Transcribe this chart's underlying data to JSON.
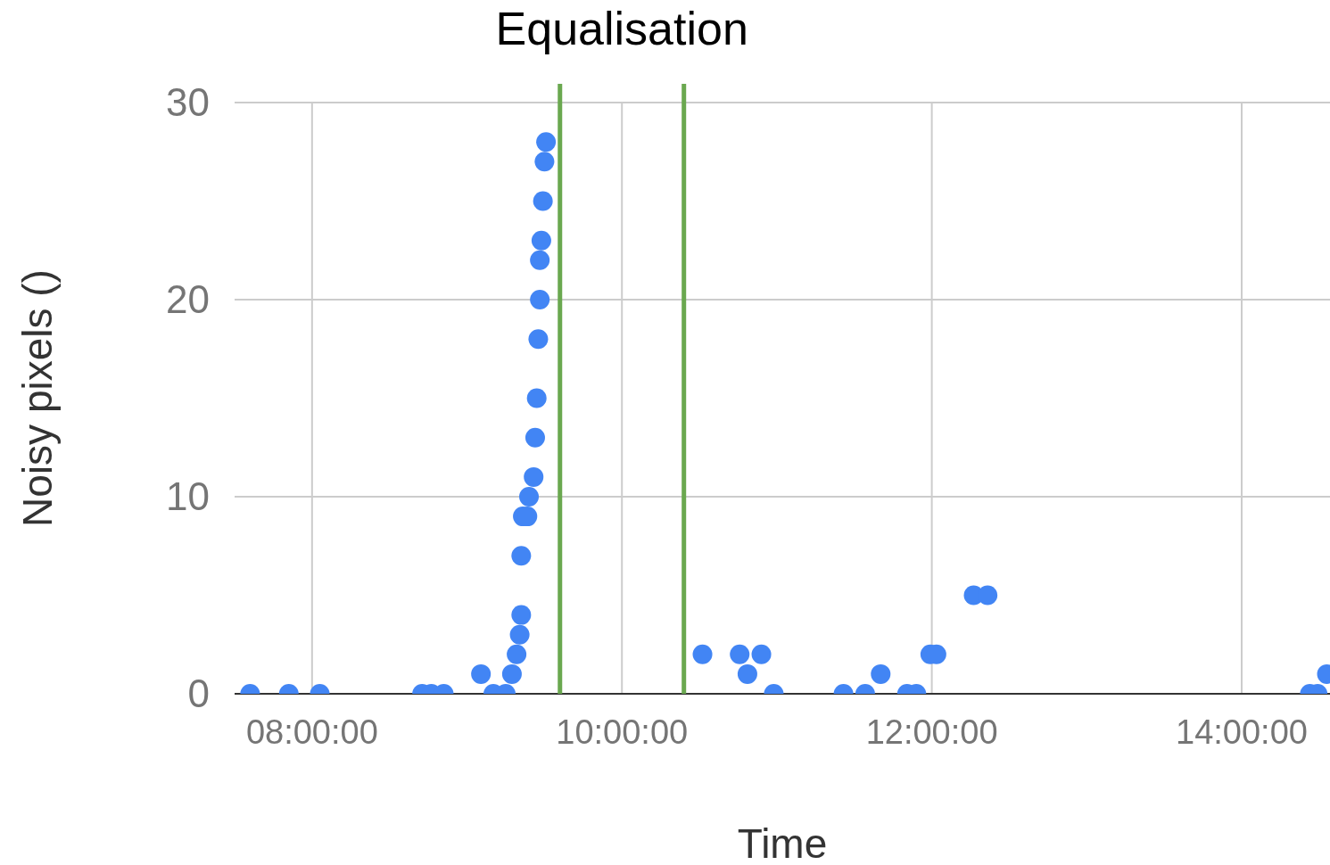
{
  "chart_data": {
    "type": "scatter",
    "title": "Equalisation",
    "xlabel": "Time",
    "ylabel": "Noisy pixels ()",
    "x": [
      7.6,
      7.85,
      8.05,
      8.71,
      8.77,
      8.85,
      9.09,
      9.17,
      9.25,
      9.29,
      9.32,
      9.34,
      9.35,
      9.35,
      9.36,
      9.39,
      9.4,
      9.43,
      9.44,
      9.45,
      9.46,
      9.47,
      9.47,
      9.48,
      9.49,
      9.5,
      9.51,
      10.52,
      10.76,
      10.81,
      10.9,
      10.98,
      11.43,
      11.57,
      11.67,
      11.84,
      11.9,
      11.99,
      12.03,
      12.27,
      12.36,
      14.44,
      14.49,
      14.55
    ],
    "series": [
      {
        "color": "#4285f4",
        "values": [
          0,
          0,
          0,
          0,
          0,
          0,
          1,
          0,
          0,
          1,
          2,
          3,
          4,
          7,
          9,
          9,
          10,
          11,
          13,
          15,
          18,
          20,
          22,
          23,
          25,
          27,
          28,
          2,
          2,
          1,
          2,
          0,
          0,
          0,
          1,
          0,
          0,
          2,
          2,
          5,
          5,
          0,
          0,
          1
        ]
      }
    ],
    "xlim": [
      7.5,
      14.57
    ],
    "xticks": [
      {
        "value": 8,
        "label": "08:00:00"
      },
      {
        "value": 10,
        "label": "10:00:00"
      },
      {
        "value": 12,
        "label": "12:00:00"
      },
      {
        "value": 14,
        "label": "14:00:00"
      }
    ],
    "ylim": [
      0,
      30
    ],
    "yticks": [
      0,
      10,
      20,
      30
    ],
    "grid": true,
    "marker": "circle",
    "ref_lines": [
      {
        "axis": "x",
        "value": 9.6,
        "color": "#6aa84f"
      },
      {
        "axis": "x",
        "value": 10.4,
        "color": "#6aa84f"
      }
    ]
  }
}
